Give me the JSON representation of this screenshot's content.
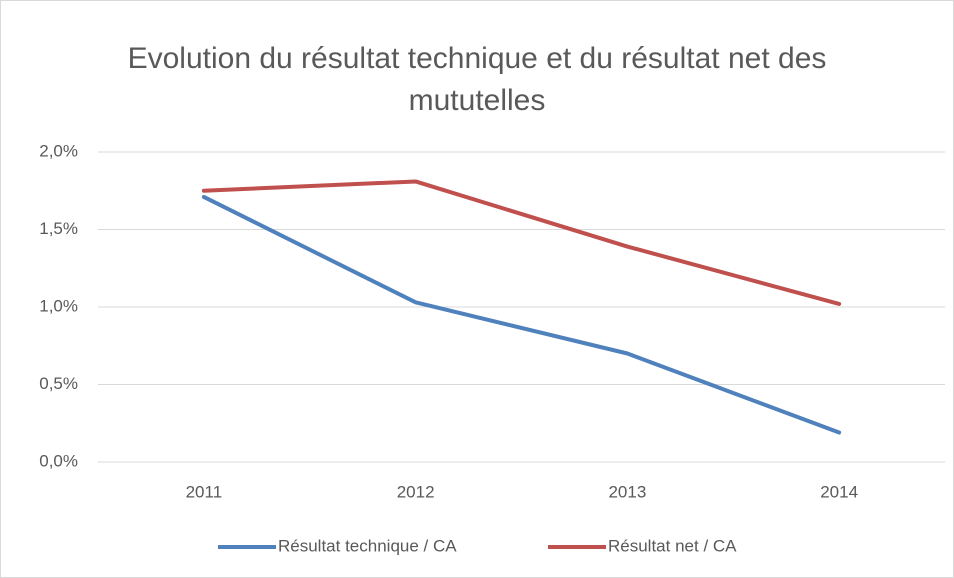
{
  "chart_data": {
    "type": "line",
    "title": "Evolution du résultat technique et du résultat net des mututelles",
    "categories": [
      "2011",
      "2012",
      "2013",
      "2014"
    ],
    "series": [
      {
        "name": "Résultat technique / CA",
        "color": "#4f81bd",
        "values": [
          1.71,
          1.03,
          0.7,
          0.19
        ]
      },
      {
        "name": "Résultat net  / CA",
        "color": "#c0504d",
        "values": [
          1.75,
          1.81,
          1.39,
          1.02
        ]
      }
    ],
    "ylim": [
      0,
      2
    ],
    "yticks": [
      {
        "value": 0,
        "label": "0,0%"
      },
      {
        "value": 0.5,
        "label": "0,5%"
      },
      {
        "value": 1,
        "label": "1,0%"
      },
      {
        "value": 1.5,
        "label": "1,5%"
      },
      {
        "value": 2,
        "label": "2,0%"
      }
    ],
    "grid": true,
    "legend": "bottom"
  }
}
